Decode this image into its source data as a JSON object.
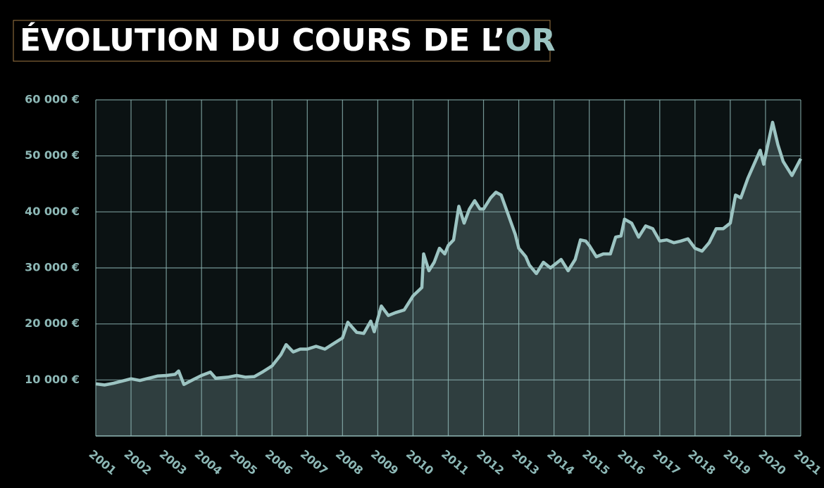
{
  "chart_data": {
    "type": "area",
    "title": [
      "ÉVOLUTION DU COURS DE L’",
      "OR"
    ],
    "title_colors": [
      "#ffffff",
      "#9cc4c2"
    ],
    "color": "#9cc4c2",
    "grid": true,
    "xlim": [
      2001,
      2021
    ],
    "xticks": [
      2001,
      2002,
      2003,
      2004,
      2005,
      2006,
      2007,
      2008,
      2009,
      2010,
      2011,
      2012,
      2013,
      2014,
      2015,
      2016,
      2017,
      2018,
      2019,
      2020,
      2021
    ],
    "ylim": [
      0,
      60000
    ],
    "yticks": [
      {
        "value": 10000,
        "label": "10 000 €"
      },
      {
        "value": 20000,
        "label": "20 000 €"
      },
      {
        "value": 30000,
        "label": "30 000 €"
      },
      {
        "value": 40000,
        "label": "40 000 €"
      },
      {
        "value": 50000,
        "label": "50 000 €"
      },
      {
        "value": 60000,
        "label": "60 000 €"
      }
    ],
    "x": [
      2001.0,
      2001.25,
      2001.5,
      2001.75,
      2002.0,
      2002.25,
      2002.5,
      2002.75,
      2003.0,
      2003.25,
      2003.35,
      2003.5,
      2003.75,
      2004.0,
      2004.25,
      2004.4,
      2004.75,
      2005.0,
      2005.25,
      2005.5,
      2005.75,
      2006.0,
      2006.25,
      2006.4,
      2006.6,
      2006.8,
      2007.0,
      2007.25,
      2007.5,
      2007.75,
      2008.0,
      2008.15,
      2008.4,
      2008.6,
      2008.8,
      2008.9,
      2009.1,
      2009.3,
      2009.5,
      2009.75,
      2010.0,
      2010.25,
      2010.3,
      2010.45,
      2010.6,
      2010.75,
      2010.9,
      2011.0,
      2011.15,
      2011.3,
      2011.45,
      2011.6,
      2011.75,
      2011.9,
      2012.0,
      2012.2,
      2012.35,
      2012.5,
      2012.7,
      2012.9,
      2013.0,
      2013.2,
      2013.3,
      2013.5,
      2013.7,
      2013.9,
      2014.0,
      2014.2,
      2014.4,
      2014.6,
      2014.75,
      2014.9,
      2015.0,
      2015.2,
      2015.4,
      2015.6,
      2015.75,
      2015.9,
      2016.0,
      2016.2,
      2016.4,
      2016.6,
      2016.8,
      2017.0,
      2017.2,
      2017.4,
      2017.6,
      2017.8,
      2018.0,
      2018.2,
      2018.4,
      2018.6,
      2018.8,
      2019.0,
      2019.15,
      2019.3,
      2019.5,
      2019.85,
      2019.95,
      2020.2,
      2020.35,
      2020.5,
      2020.75,
      2021.0
    ],
    "values": [
      9300,
      9100,
      9400,
      9800,
      10200,
      9900,
      10300,
      10700,
      10800,
      11000,
      11600,
      9200,
      10000,
      10800,
      11400,
      10300,
      10500,
      10800,
      10500,
      10600,
      11500,
      12500,
      14500,
      16300,
      15000,
      15500,
      15500,
      16000,
      15500,
      16500,
      17500,
      20300,
      18500,
      18300,
      20500,
      18600,
      23200,
      21500,
      22000,
      22500,
      25000,
      26500,
      32500,
      29500,
      31000,
      33500,
      32500,
      34000,
      35000,
      41000,
      38000,
      40500,
      42000,
      40500,
      40500,
      42500,
      43500,
      43000,
      39500,
      36000,
      33500,
      32000,
      30500,
      29000,
      31000,
      30000,
      30500,
      31500,
      29500,
      31500,
      35000,
      34800,
      34000,
      32000,
      32500,
      32500,
      35500,
      35700,
      38700,
      38000,
      35500,
      37500,
      37000,
      34800,
      35000,
      34500,
      34800,
      35200,
      33500,
      33000,
      34500,
      37000,
      37000,
      38000,
      43000,
      42500,
      46000,
      51000,
      48500,
      56000,
      52000,
      49000,
      46500,
      49500
    ]
  }
}
